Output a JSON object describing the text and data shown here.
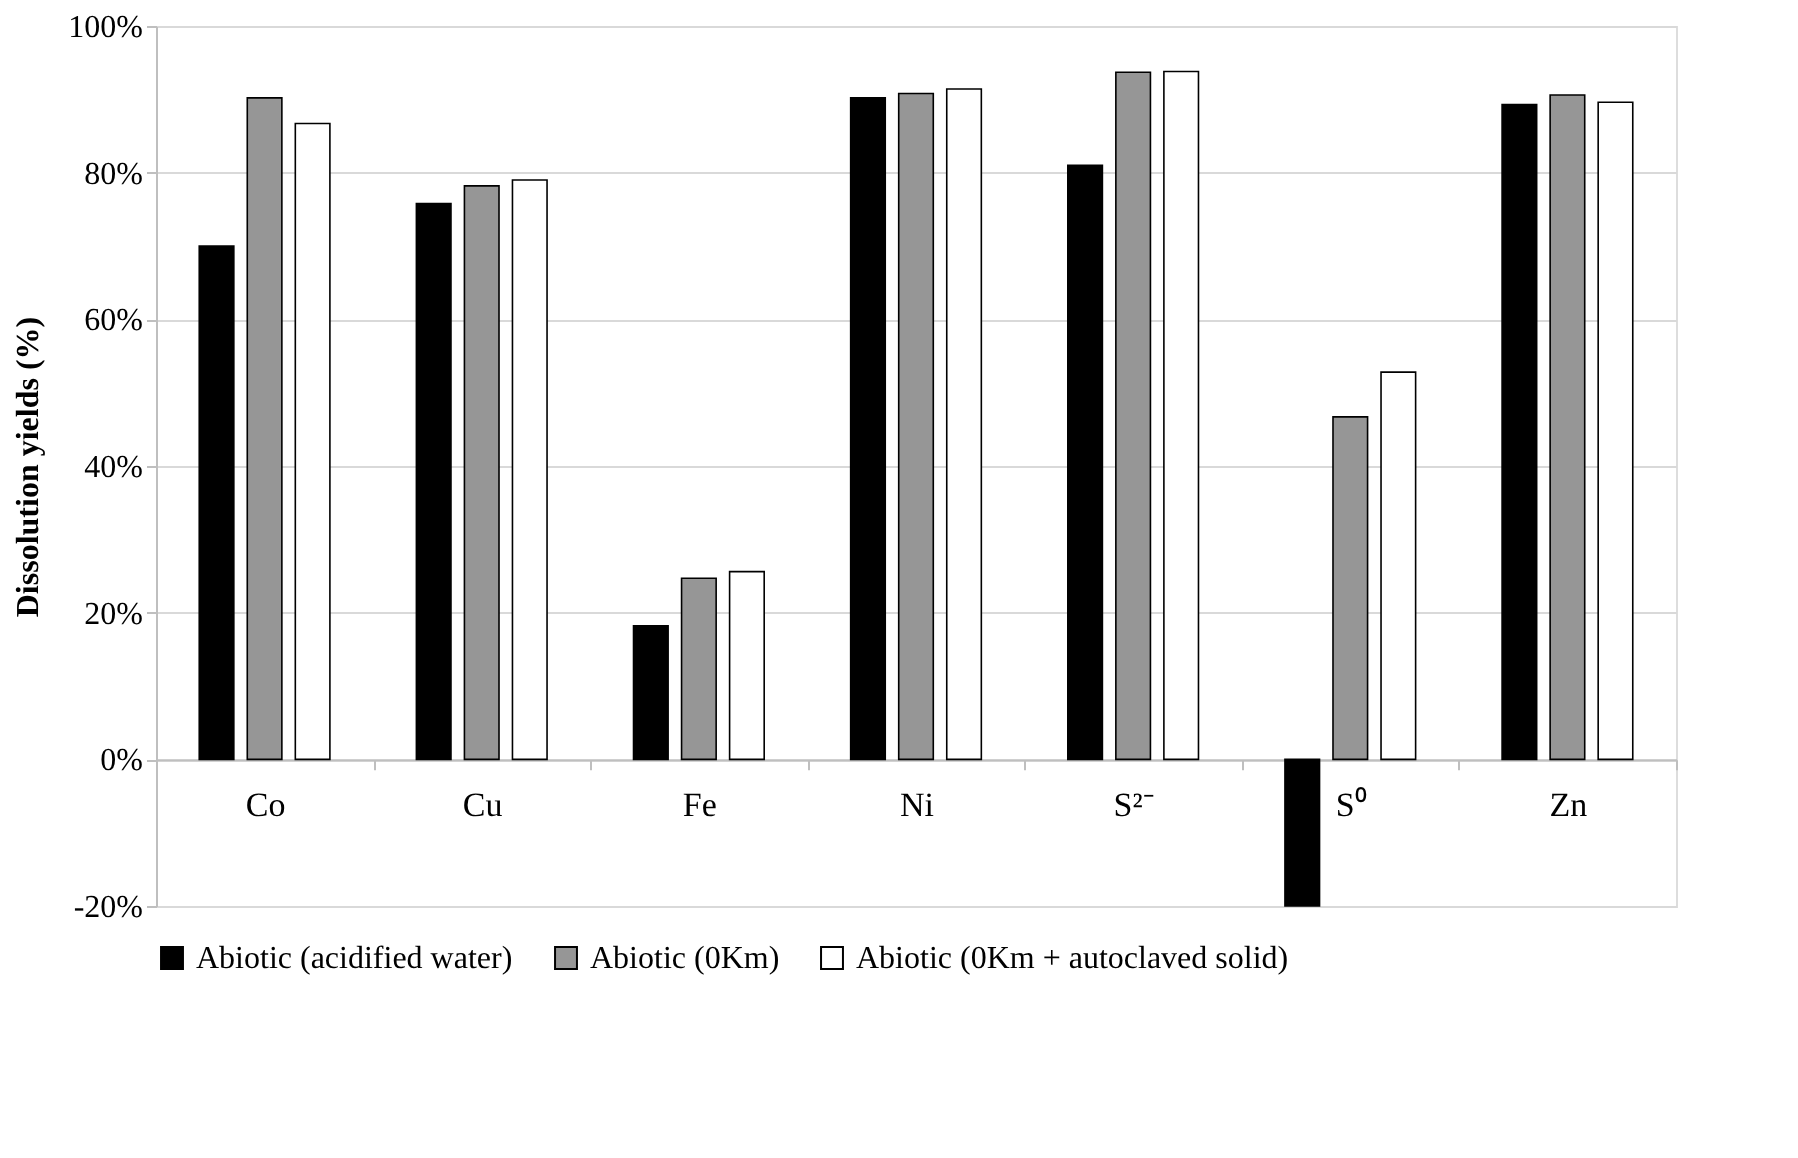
{
  "chart_data": {
    "type": "bar",
    "ylabel": "Dissolution yields (%)",
    "categories": [
      "Co",
      "Cu",
      "Fe",
      "Ni",
      "S²⁻",
      "S⁰",
      "Zn"
    ],
    "series": [
      {
        "name": "Abiotic (acidified water)",
        "color": "#000000",
        "values": [
          70,
          75.8,
          18.2,
          90.2,
          81,
          -20,
          89.3
        ]
      },
      {
        "name": "Abiotic (0Km)",
        "color": "#969696",
        "values": [
          90.2,
          78.2,
          24.7,
          90.8,
          93.7,
          46.7,
          90.6
        ]
      },
      {
        "name": "Abiotic (0Km + autoclaved solid)",
        "color": "#ffffff",
        "values": [
          86.7,
          79,
          25.6,
          91.4,
          93.8,
          52.8,
          89.6
        ]
      }
    ],
    "ylim": [
      -20,
      100
    ],
    "yticks": [
      {
        "value": -20,
        "label": "-20%"
      },
      {
        "value": 0,
        "label": "0%"
      },
      {
        "value": 20,
        "label": "20%"
      },
      {
        "value": 40,
        "label": "40%"
      },
      {
        "value": 60,
        "label": "60%"
      },
      {
        "value": 80,
        "label": "80%"
      },
      {
        "value": 100,
        "label": "100%"
      }
    ],
    "grid": "y",
    "legend": "bottom"
  }
}
